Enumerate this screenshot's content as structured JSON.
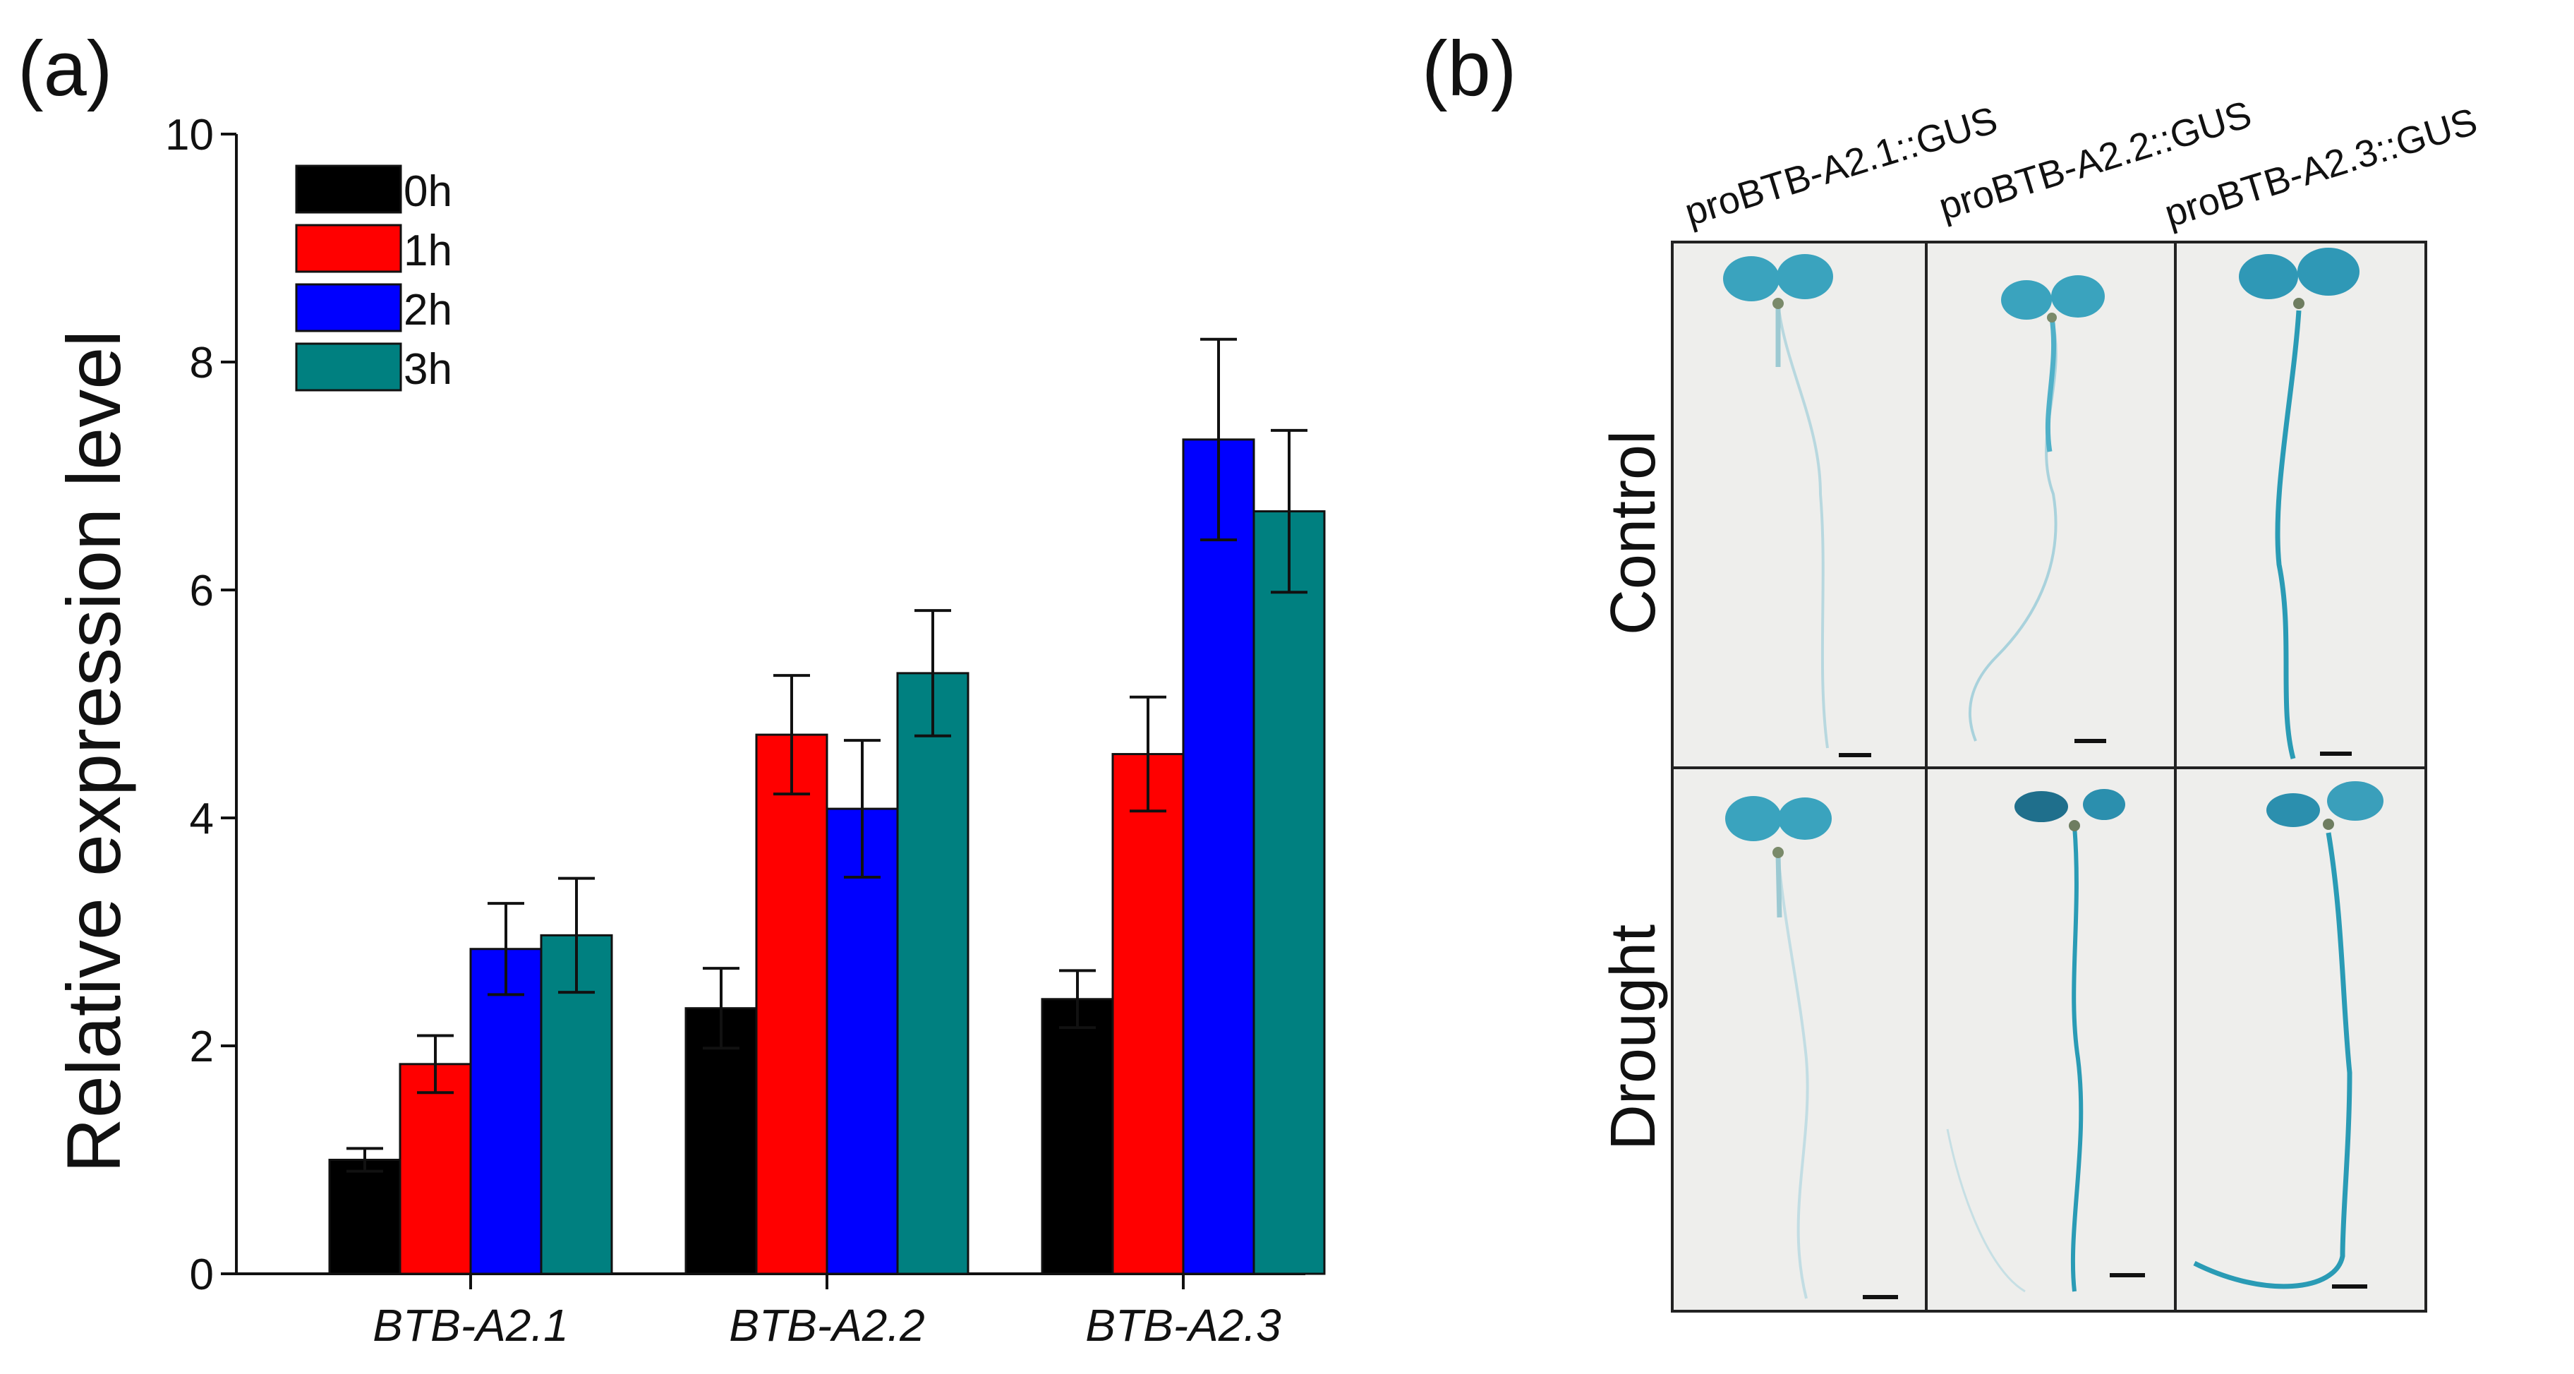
{
  "panels": {
    "a_label": "(a)",
    "b_label": "(b)"
  },
  "chart_data": {
    "type": "bar",
    "title": "",
    "xlabel": "",
    "ylabel": "Relative expression level",
    "ylim": [
      0,
      10
    ],
    "yticks": [
      0,
      2,
      4,
      6,
      8,
      10
    ],
    "categories": [
      "BTB-A2.1",
      "BTB-A2.2",
      "BTB-A2.3"
    ],
    "series": [
      {
        "name": "0h",
        "color": "#000000",
        "values": [
          1.0,
          2.33,
          2.41
        ],
        "errors": [
          0.1,
          0.35,
          0.25
        ]
      },
      {
        "name": "1h",
        "color": "#ff0000",
        "values": [
          1.84,
          4.73,
          4.56
        ],
        "errors": [
          0.25,
          0.52,
          0.5
        ]
      },
      {
        "name": "2h",
        "color": "#0000ff",
        "values": [
          2.85,
          4.08,
          7.32
        ],
        "errors": [
          0.4,
          0.6,
          0.88
        ]
      },
      {
        "name": "3h",
        "color": "#008080",
        "values": [
          2.97,
          5.27,
          6.69
        ],
        "errors": [
          0.5,
          0.55,
          0.71
        ]
      }
    ],
    "legend_position": "top-left"
  },
  "panel_b": {
    "columns": [
      "proBTB-A2.1::GUS",
      "proBTB-A2.2::GUS",
      "proBTB-A2.3::GUS"
    ],
    "rows": [
      "Control",
      "Drought"
    ],
    "image_bg": "#eeeeec",
    "stain_color": "#2a9bb5"
  }
}
